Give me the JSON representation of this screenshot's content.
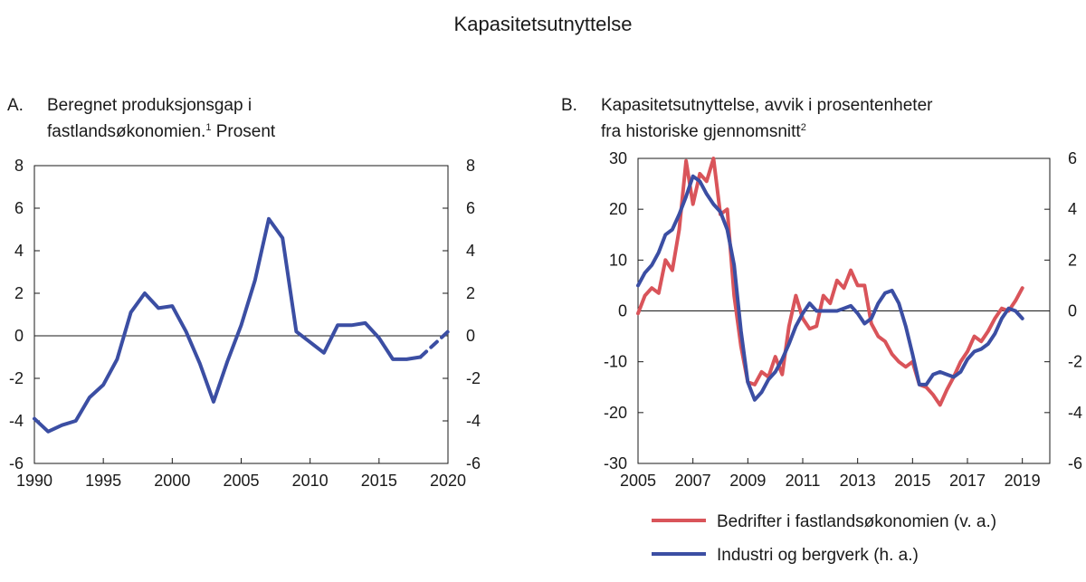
{
  "title": "Kapasitetsutnyttelse",
  "chart_data": [
    {
      "type": "line",
      "panel_letter": "A.",
      "title_line1": "Beregnet produksjonsgap i",
      "title_line2": "fastlandsøkonomien.",
      "title_sup": "1",
      "title_tail": " Prosent",
      "xlim": [
        1990,
        2020
      ],
      "ylim": [
        -6,
        8
      ],
      "x_ticks": [
        1990,
        1995,
        2000,
        2005,
        2010,
        2015,
        2020
      ],
      "x_tick_labels": [
        "1990",
        "1995",
        "2000",
        "2005",
        "2010",
        "2015",
        "2020"
      ],
      "y_ticks": [
        -6,
        -4,
        -2,
        0,
        2,
        4,
        6,
        8
      ],
      "y_tick_labels": [
        "-6",
        "-4",
        "-2",
        "0",
        "2",
        "4",
        "6",
        "8"
      ],
      "right_y_tick_labels": [
        "-6",
        "-4",
        "-2",
        "0",
        "2",
        "4",
        "6",
        "8"
      ],
      "series": [
        {
          "color": "#3b4ea3",
          "style": "solid",
          "x": [
            1990,
            1991,
            1992,
            1993,
            1994,
            1995,
            1996,
            1997,
            1998,
            1999,
            2000,
            2001,
            2002,
            2003,
            2004,
            2005,
            2006,
            2007,
            2008,
            2009,
            2010,
            2011,
            2012,
            2013,
            2014,
            2015,
            2016,
            2017,
            2018
          ],
          "values": [
            -3.9,
            -4.5,
            -4.2,
            -4.0,
            -2.9,
            -2.3,
            -1.1,
            1.1,
            2.0,
            1.3,
            1.4,
            0.2,
            -1.3,
            -3.1,
            -1.2,
            0.5,
            2.6,
            5.5,
            4.6,
            0.2,
            -0.3,
            -0.8,
            0.5,
            0.5,
            0.6,
            -0.1,
            -1.1,
            -1.1,
            -1.0
          ]
        },
        {
          "color": "#3b4ea3",
          "style": "dashed",
          "x": [
            2018,
            2019,
            2020
          ],
          "values": [
            -1.0,
            -0.4,
            0.2
          ]
        }
      ]
    },
    {
      "type": "line",
      "panel_letter": "B.",
      "title_line1": "Kapasitetsutnyttelse, avvik i prosentenheter",
      "title_line2": "fra historiske gjennomsnitt",
      "title_sup": "2",
      "xlim": [
        2005,
        2020
      ],
      "ylim": [
        -30,
        30
      ],
      "right_ylim": [
        -6,
        6
      ],
      "x_ticks": [
        2005,
        2007,
        2009,
        2011,
        2013,
        2015,
        2017,
        2019
      ],
      "x_tick_labels": [
        "2005",
        "2007",
        "2009",
        "2011",
        "2013",
        "2015",
        "2017",
        "2019"
      ],
      "y_ticks": [
        -30,
        -20,
        -10,
        0,
        10,
        20,
        30
      ],
      "y_tick_labels": [
        "-30",
        "-20",
        "-10",
        "0",
        "10",
        "20",
        "30"
      ],
      "right_y_ticks": [
        -6,
        -4,
        -2,
        0,
        2,
        4,
        6
      ],
      "right_y_tick_labels": [
        "-6",
        "-4",
        "-2",
        "0",
        "2",
        "4",
        "6"
      ],
      "legend_position": "bottom",
      "series": [
        {
          "name": "Bedrifter i fastlandsøkonomien (v. a.)",
          "color": "#d9545a",
          "axis": "left",
          "x": [
            2005.0,
            2005.25,
            2005.5,
            2005.75,
            2006.0,
            2006.25,
            2006.5,
            2006.75,
            2007.0,
            2007.25,
            2007.5,
            2007.75,
            2008.0,
            2008.25,
            2008.5,
            2008.75,
            2009.0,
            2009.25,
            2009.5,
            2009.75,
            2010.0,
            2010.25,
            2010.5,
            2010.75,
            2011.0,
            2011.25,
            2011.5,
            2011.75,
            2012.0,
            2012.25,
            2012.5,
            2012.75,
            2013.0,
            2013.25,
            2013.5,
            2013.75,
            2014.0,
            2014.25,
            2014.5,
            2014.75,
            2015.0,
            2015.25,
            2015.5,
            2015.75,
            2016.0,
            2016.25,
            2016.5,
            2016.75,
            2017.0,
            2017.25,
            2017.5,
            2017.75,
            2018.0,
            2018.25,
            2018.5,
            2018.75,
            2019.0
          ],
          "values": [
            -0.5,
            3.0,
            4.5,
            3.5,
            10.0,
            8.0,
            16.0,
            29.5,
            21.0,
            27.0,
            25.5,
            30.0,
            19.0,
            20.0,
            3.0,
            -7.0,
            -14.0,
            -14.5,
            -12.0,
            -13.0,
            -9.0,
            -12.5,
            -3.0,
            3.0,
            -1.5,
            -3.5,
            -3.0,
            3.0,
            1.5,
            6.0,
            4.5,
            8.0,
            5.0,
            5.0,
            -2.5,
            -5.0,
            -6.0,
            -8.5,
            -10.0,
            -11.0,
            -10.0,
            -14.5,
            -15.0,
            -16.5,
            -18.5,
            -15.5,
            -13.0,
            -10.0,
            -8.0,
            -5.0,
            -6.0,
            -4.0,
            -1.5,
            0.5,
            0.0,
            2.0,
            4.5
          ]
        },
        {
          "name": "Industri og bergverk (h. a.)",
          "color": "#3b4ea3",
          "axis": "right",
          "x": [
            2005.0,
            2005.25,
            2005.5,
            2005.75,
            2006.0,
            2006.25,
            2006.5,
            2006.75,
            2007.0,
            2007.25,
            2007.5,
            2007.75,
            2008.0,
            2008.25,
            2008.5,
            2008.75,
            2009.0,
            2009.25,
            2009.5,
            2009.75,
            2010.0,
            2010.25,
            2010.5,
            2010.75,
            2011.0,
            2011.25,
            2011.5,
            2011.75,
            2012.0,
            2012.25,
            2012.5,
            2012.75,
            2013.0,
            2013.25,
            2013.5,
            2013.75,
            2014.0,
            2014.25,
            2014.5,
            2014.75,
            2015.0,
            2015.25,
            2015.5,
            2015.75,
            2016.0,
            2016.25,
            2016.5,
            2016.75,
            2017.0,
            2017.25,
            2017.5,
            2017.75,
            2018.0,
            2018.25,
            2018.5,
            2018.75,
            2019.0
          ],
          "values": [
            1.0,
            1.5,
            1.8,
            2.3,
            3.0,
            3.2,
            3.8,
            4.5,
            5.3,
            5.1,
            4.6,
            4.2,
            3.9,
            3.2,
            1.8,
            -0.8,
            -2.8,
            -3.5,
            -3.2,
            -2.7,
            -2.4,
            -1.9,
            -1.3,
            -0.6,
            -0.1,
            0.3,
            0.0,
            0.0,
            0.0,
            0.0,
            0.1,
            0.2,
            -0.1,
            -0.5,
            -0.3,
            0.3,
            0.7,
            0.8,
            0.3,
            -0.6,
            -1.7,
            -2.9,
            -2.9,
            -2.5,
            -2.4,
            -2.5,
            -2.6,
            -2.4,
            -1.9,
            -1.6,
            -1.5,
            -1.3,
            -0.9,
            -0.3,
            0.1,
            0.0,
            -0.3
          ]
        }
      ]
    }
  ]
}
